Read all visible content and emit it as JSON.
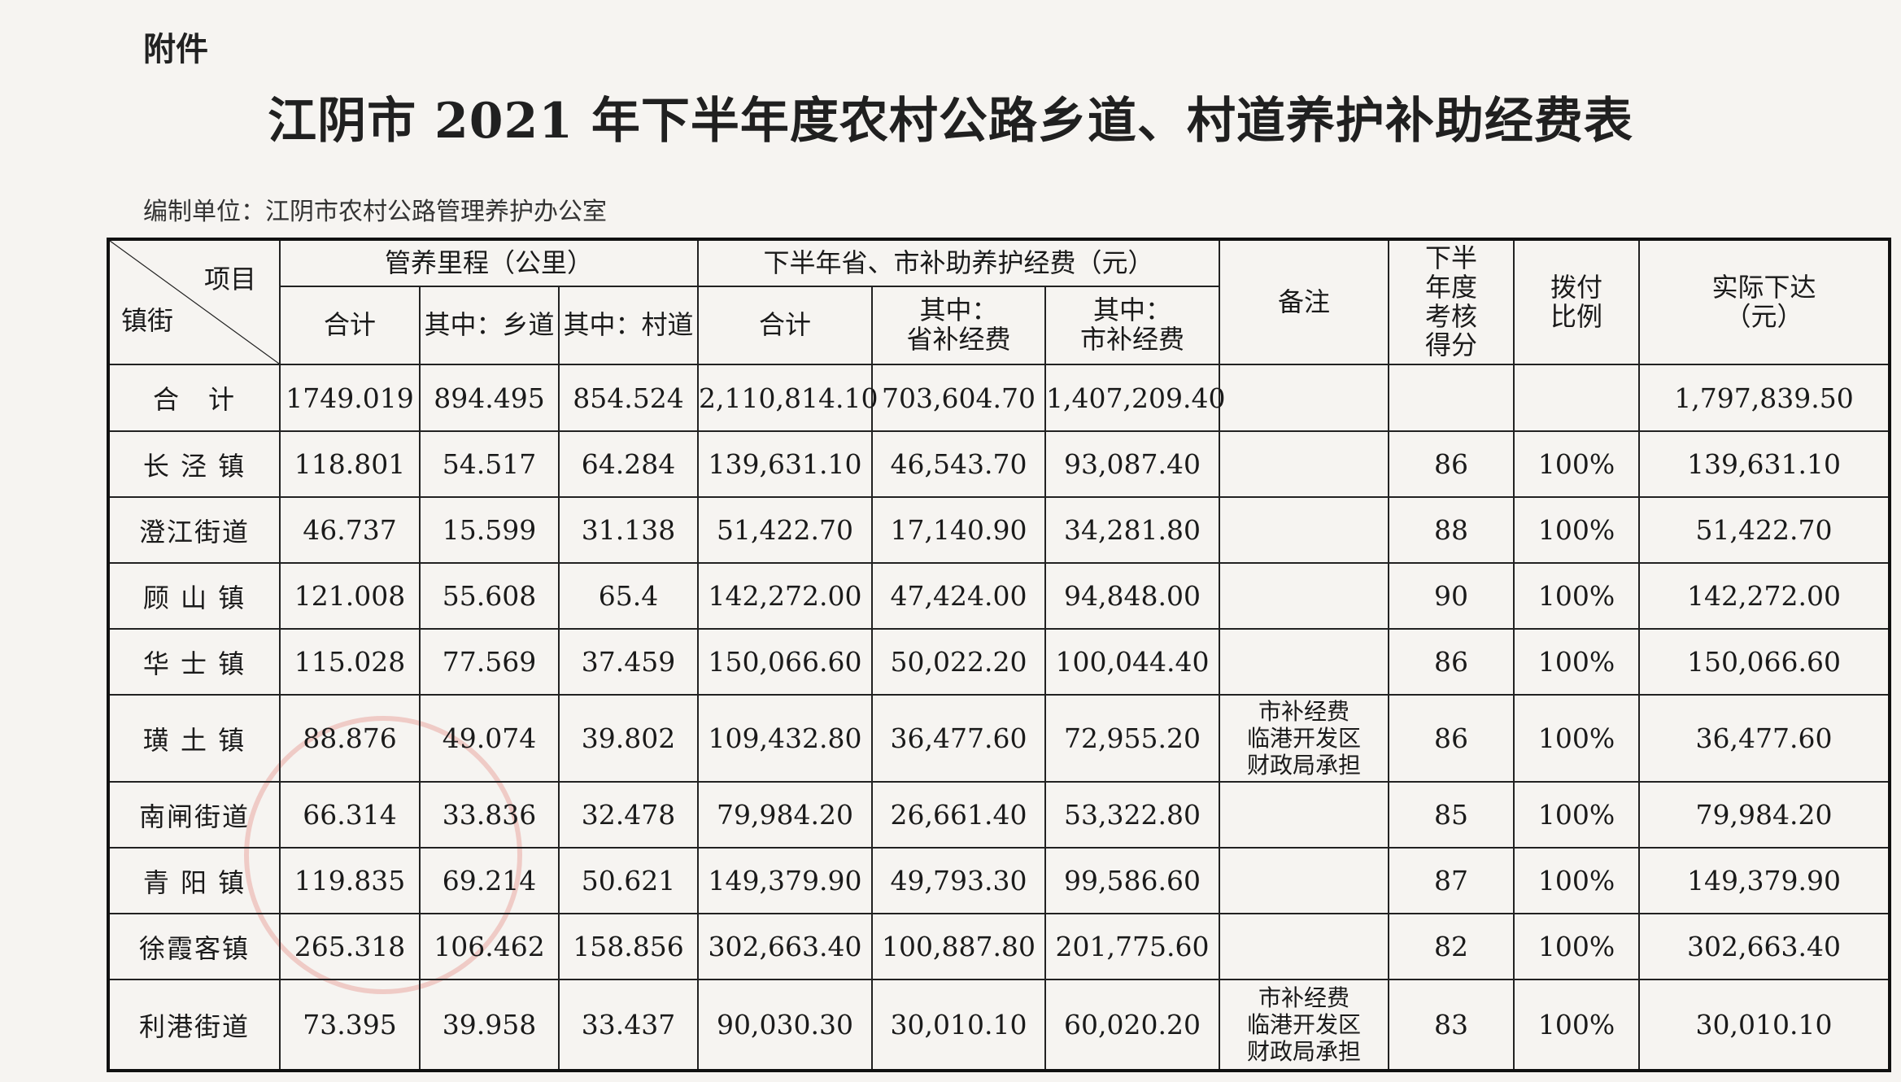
{
  "attachment_label": "附件",
  "title": "江阴市 2021 年下半年度农村公路乡道、村道养护补助经费表",
  "compiler": "编制单位：江阴市农村公路管理养护办公室",
  "headers": {
    "corner_item": "项目",
    "corner_town": "镇街",
    "mileage_group": "管养里程（公里）",
    "subsidy_group": "下半年省、市补助养护经费（元）",
    "mileage_total": "合计",
    "mileage_township": "其中：乡道",
    "mileage_village": "其中：村道",
    "subsidy_total": "合计",
    "subsidy_province": "其中：\n省补经费",
    "subsidy_city": "其中：\n市补经费",
    "remarks": "备注",
    "score": "下半\n年度\n考核\n得分",
    "ratio": "拨付\n比例",
    "actual": "实际下达\n（元）"
  },
  "total_row": {
    "name": "合　计",
    "mileage_total": "1749.019",
    "township": "894.495",
    "village": "854.524",
    "subsidy_total": "2,110,814.10",
    "province": "703,604.70",
    "city": "1,407,209.40",
    "remark": "",
    "score": "",
    "ratio": "",
    "actual": "1,797,839.50"
  },
  "rows": [
    {
      "name": "长 泾 镇",
      "mileage_total": "118.801",
      "township": "54.517",
      "village": "64.284",
      "subsidy_total": "139,631.10",
      "province": "46,543.70",
      "city": "93,087.40",
      "remark": "",
      "score": "86",
      "ratio": "100%",
      "actual": "139,631.10"
    },
    {
      "name": "澄江街道",
      "mileage_total": "46.737",
      "township": "15.599",
      "village": "31.138",
      "subsidy_total": "51,422.70",
      "province": "17,140.90",
      "city": "34,281.80",
      "remark": "",
      "score": "88",
      "ratio": "100%",
      "actual": "51,422.70"
    },
    {
      "name": "顾 山 镇",
      "mileage_total": "121.008",
      "township": "55.608",
      "village": "65.4",
      "subsidy_total": "142,272.00",
      "province": "47,424.00",
      "city": "94,848.00",
      "remark": "",
      "score": "90",
      "ratio": "100%",
      "actual": "142,272.00"
    },
    {
      "name": "华 士 镇",
      "mileage_total": "115.028",
      "township": "77.569",
      "village": "37.459",
      "subsidy_total": "150,066.60",
      "province": "50,022.20",
      "city": "100,044.40",
      "remark": "",
      "score": "86",
      "ratio": "100%",
      "actual": "150,066.60"
    },
    {
      "name": "璜 土 镇",
      "mileage_total": "88.876",
      "township": "49.074",
      "village": "39.802",
      "subsidy_total": "109,432.80",
      "province": "36,477.60",
      "city": "72,955.20",
      "remark": "市补经费\n临港开发区\n财政局承担",
      "score": "86",
      "ratio": "100%",
      "actual": "36,477.60"
    },
    {
      "name": "南闸街道",
      "mileage_total": "66.314",
      "township": "33.836",
      "village": "32.478",
      "subsidy_total": "79,984.20",
      "province": "26,661.40",
      "city": "53,322.80",
      "remark": "",
      "score": "85",
      "ratio": "100%",
      "actual": "79,984.20"
    },
    {
      "name": "青 阳 镇",
      "mileage_total": "119.835",
      "township": "69.214",
      "village": "50.621",
      "subsidy_total": "149,379.90",
      "province": "49,793.30",
      "city": "99,586.60",
      "remark": "",
      "score": "87",
      "ratio": "100%",
      "actual": "149,379.90"
    },
    {
      "name": "徐霞客镇",
      "mileage_total": "265.318",
      "township": "106.462",
      "village": "158.856",
      "subsidy_total": "302,663.40",
      "province": "100,887.80",
      "city": "201,775.60",
      "remark": "",
      "score": "82",
      "ratio": "100%",
      "actual": "302,663.40"
    },
    {
      "name": "利港街道",
      "mileage_total": "73.395",
      "township": "39.958",
      "village": "33.437",
      "subsidy_total": "90,030.30",
      "province": "30,010.10",
      "city": "60,020.20",
      "remark": "市补经费\n临港开发区\n财政局承担",
      "score": "83",
      "ratio": "100%",
      "actual": "30,010.10"
    }
  ]
}
